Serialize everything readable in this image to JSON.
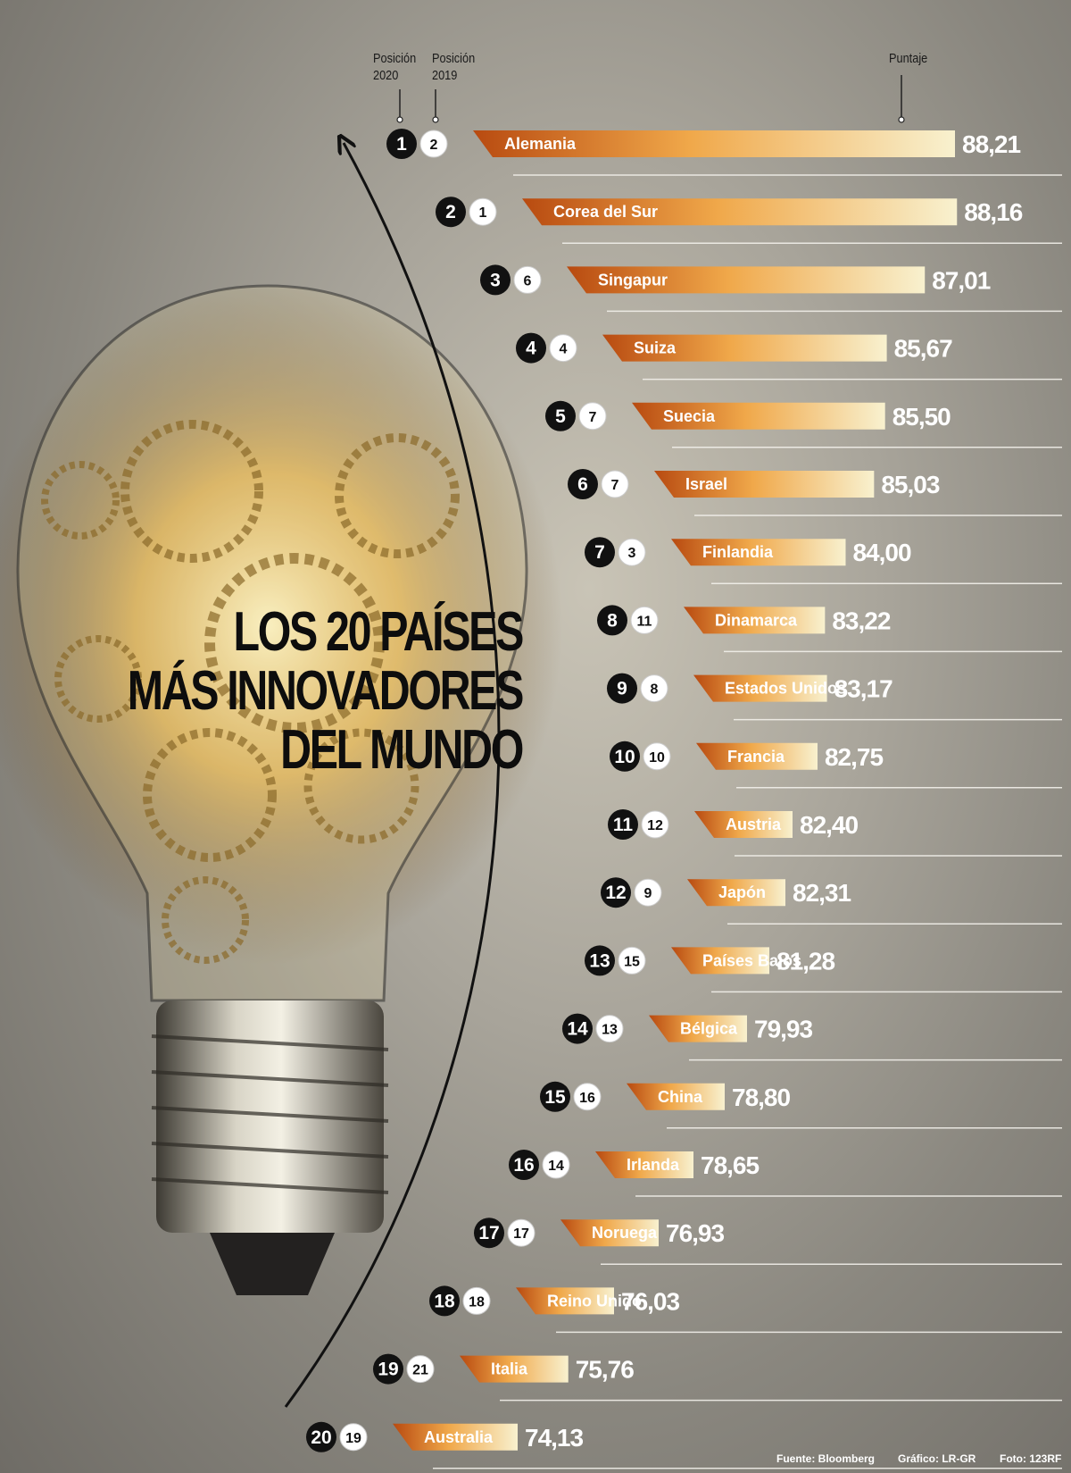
{
  "title_lines": [
    "LOS 20 PAÍSES",
    "MÁS INNOVADORES",
    "DEL MUNDO"
  ],
  "headers": {
    "pos2020": [
      "Posición",
      "2020"
    ],
    "pos2019": [
      "Posición",
      "2019"
    ],
    "score": "Puntaje"
  },
  "footer": {
    "source": "Fuente: Bloomberg",
    "graphic": "Gráfico: LR-GR",
    "photo": "Foto: 123RF"
  },
  "colors": {
    "bar_dark": "#b84a10",
    "bar_mid": "#f0a84a",
    "bar_light": "#f8f1cf",
    "badge_2020": "#111111",
    "badge_2019": "#ffffff",
    "text_label": "#ffffff"
  },
  "chart_data": {
    "type": "bar",
    "orientation": "horizontal",
    "categories": [
      "Alemania",
      "Corea del Sur",
      "Singapur",
      "Suiza",
      "Suecia",
      "Israel",
      "Finlandia",
      "Dinamarca",
      "Estados Unidos",
      "Francia",
      "Austria",
      "Japón",
      "Países Bajos",
      "Bélgica",
      "China",
      "Irlanda",
      "Noruega",
      "Reino Unido",
      "Italia",
      "Australia"
    ],
    "values": [
      "88,21",
      "88,16",
      "87,01",
      "85,67",
      "85,50",
      "85,03",
      "84,00",
      "83,22",
      "83,17",
      "82,75",
      "82,40",
      "82,31",
      "81,28",
      "79,93",
      "78,80",
      "78,65",
      "76,93",
      "76,03",
      "75,76",
      "74,13"
    ],
    "pos2020": [
      "1",
      "2",
      "3",
      "4",
      "5",
      "6",
      "7",
      "8",
      "9",
      "10",
      "11",
      "12",
      "13",
      "14",
      "15",
      "16",
      "17",
      "18",
      "19",
      "20"
    ],
    "pos2019": [
      "2",
      "1",
      "6",
      "4",
      "7",
      "7",
      "3",
      "11",
      "8",
      "10",
      "12",
      "9",
      "15",
      "13",
      "16",
      "14",
      "17",
      "18",
      "21",
      "19"
    ],
    "xlabel": "",
    "ylabel": "Puntaje",
    "legend": "none",
    "grid": false
  }
}
